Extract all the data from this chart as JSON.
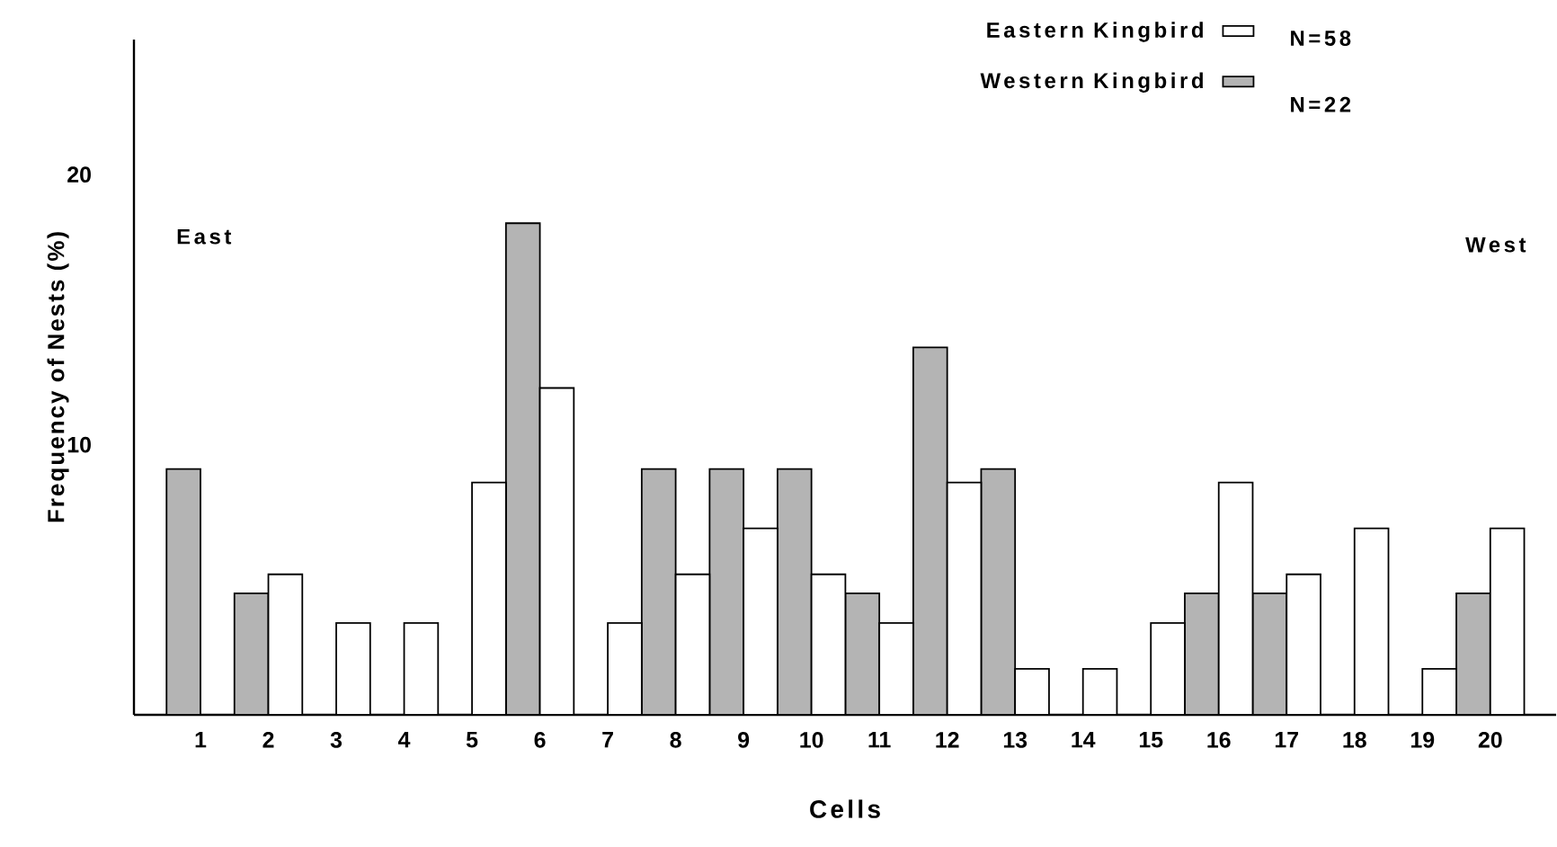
{
  "chart_data": {
    "type": "bar",
    "xlabel": "Cells",
    "ylabel": "Frequency of Nests (%)",
    "categories": [
      "1",
      "2",
      "3",
      "4",
      "5",
      "6",
      "7",
      "8",
      "9",
      "10",
      "11",
      "12",
      "13",
      "14",
      "15",
      "16",
      "17",
      "18",
      "19",
      "20"
    ],
    "series": [
      {
        "name": "Western Kingbird",
        "color": "#b4b4b4",
        "values": [
          9.1,
          4.5,
          null,
          null,
          null,
          18.2,
          null,
          9.1,
          9.1,
          9.1,
          4.5,
          13.6,
          9.1,
          null,
          null,
          4.5,
          4.5,
          null,
          null,
          4.5
        ]
      },
      {
        "name": "Eastern Kingbird",
        "color": "#ffffff",
        "values": [
          null,
          5.2,
          3.4,
          3.4,
          8.6,
          12.1,
          3.4,
          5.2,
          6.9,
          5.2,
          3.4,
          8.6,
          1.7,
          1.7,
          3.4,
          8.6,
          5.2,
          6.9,
          1.7,
          6.9
        ]
      }
    ],
    "ylim": [
      0,
      25
    ],
    "yticks": [
      10,
      20
    ],
    "legend": "top right",
    "annotations": [
      "East",
      "West",
      "N=58",
      "N=22"
    ]
  }
}
